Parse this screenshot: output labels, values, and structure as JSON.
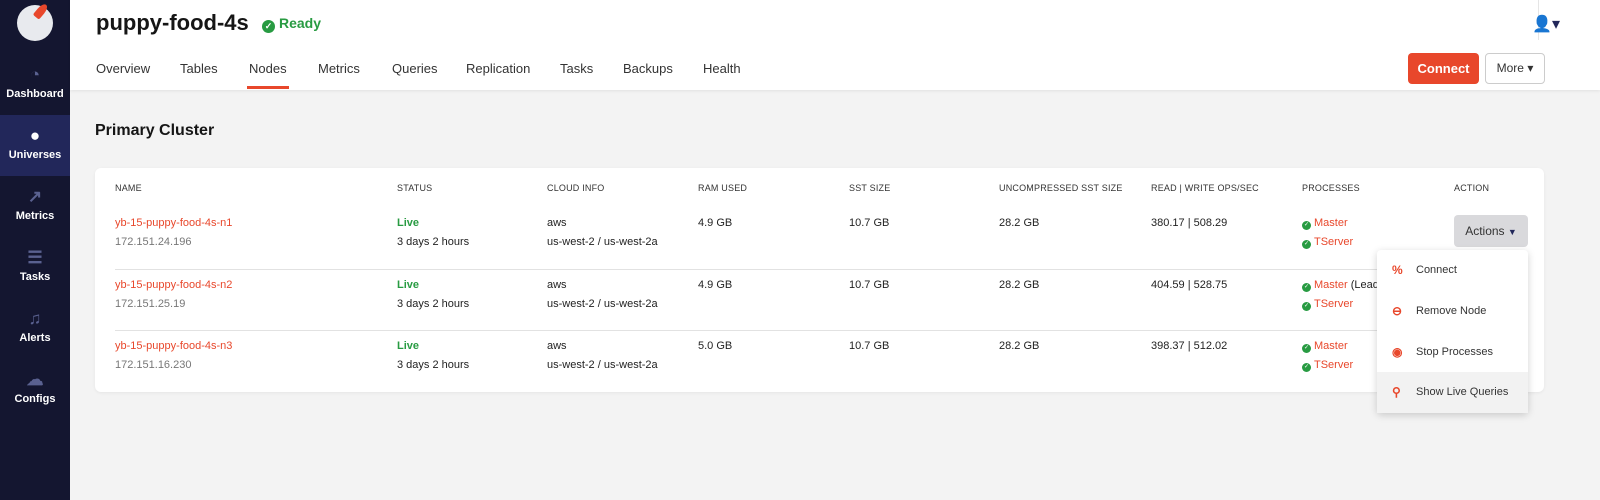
{
  "sidebar": {
    "items": [
      {
        "label": "Dashboard",
        "icon": "gauge-icon"
      },
      {
        "label": "Universes",
        "icon": "globe-icon",
        "active": true
      },
      {
        "label": "Metrics",
        "icon": "chart-icon"
      },
      {
        "label": "Tasks",
        "icon": "list-icon"
      },
      {
        "label": "Alerts",
        "icon": "bell-icon"
      },
      {
        "label": "Configs",
        "icon": "cloud-upload-icon"
      }
    ]
  },
  "header": {
    "title": "puppy-food-4s",
    "status": "Ready",
    "tabs": [
      "Overview",
      "Tables",
      "Nodes",
      "Metrics",
      "Queries",
      "Replication",
      "Tasks",
      "Backups",
      "Health"
    ],
    "active_tab": "Nodes",
    "connect": "Connect",
    "more": "More"
  },
  "section_title": "Primary Cluster",
  "table": {
    "columns": [
      "NAME",
      "STATUS",
      "CLOUD INFO",
      "RAM USED",
      "SST SIZE",
      "UNCOMPRESSED SST SIZE",
      "READ | WRITE OPS/SEC",
      "PROCESSES",
      "ACTION"
    ],
    "rows": [
      {
        "name": "yb-15-puppy-food-4s-n1",
        "ip": "172.151.24.196",
        "status": "Live",
        "uptime": "3 days 2 hours",
        "cloud": "aws",
        "region": "us-west-2 / us-west-2a",
        "ram": "4.9 GB",
        "sst": "10.7 GB",
        "usst": "28.2 GB",
        "ops": "380.17 | 508.29",
        "master": "Master",
        "master_note": "",
        "tserver": "TServer"
      },
      {
        "name": "yb-15-puppy-food-4s-n2",
        "ip": "172.151.25.19",
        "status": "Live",
        "uptime": "3 days 2 hours",
        "cloud": "aws",
        "region": "us-west-2 / us-west-2a",
        "ram": "4.9 GB",
        "sst": "10.7 GB",
        "usst": "28.2 GB",
        "ops": "404.59 | 528.75",
        "master": "Master",
        "master_note": "(Lead",
        "tserver": "TServer"
      },
      {
        "name": "yb-15-puppy-food-4s-n3",
        "ip": "172.151.16.230",
        "status": "Live",
        "uptime": "3 days 2 hours",
        "cloud": "aws",
        "region": "us-west-2 / us-west-2a",
        "ram": "5.0 GB",
        "sst": "10.7 GB",
        "usst": "28.2 GB",
        "ops": "398.37 | 512.02",
        "master": "Master",
        "master_note": "",
        "tserver": "TServer"
      }
    ],
    "actions": "Actions"
  },
  "menu": [
    "Connect",
    "Remove Node",
    "Stop Processes",
    "Show Live Queries"
  ],
  "colors": {
    "accent": "#e8472b",
    "live": "#289b42",
    "sidebar": "#141630"
  }
}
